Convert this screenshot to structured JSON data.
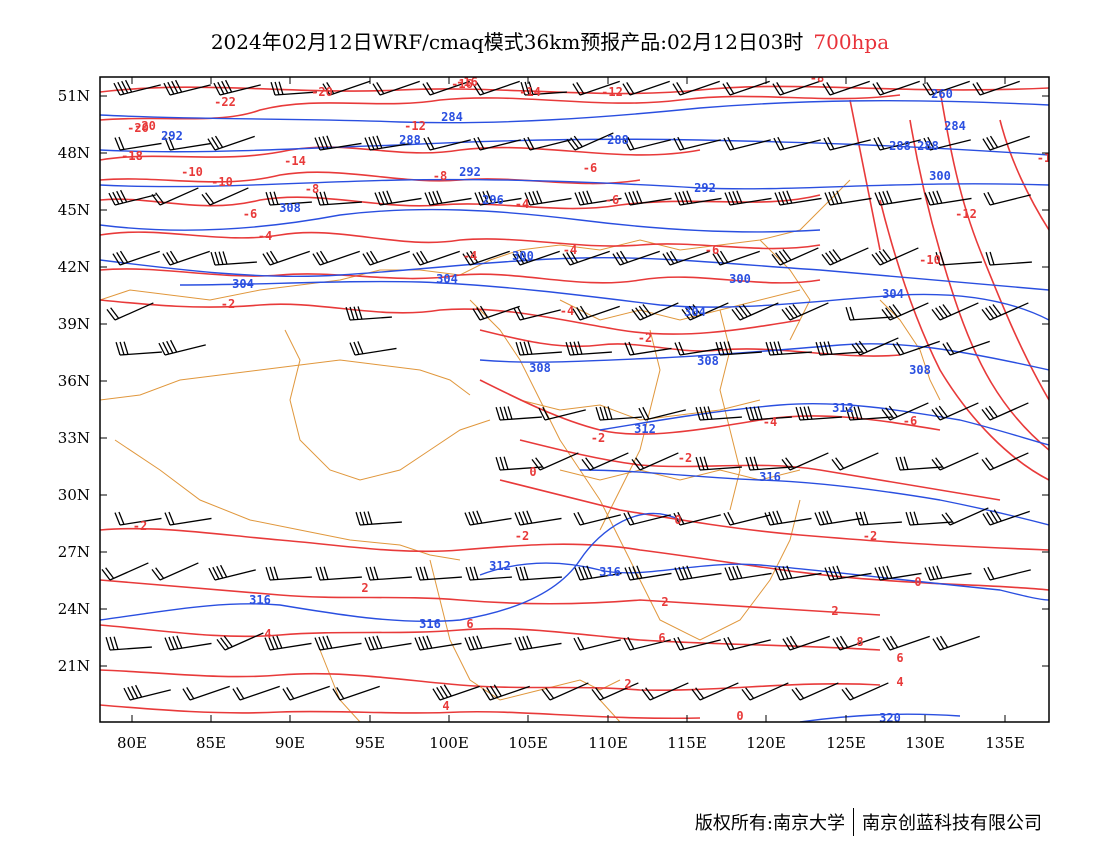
{
  "title": {
    "main": "2024年02月12日WRF/cmaq模式36km预报产品:02月12日03时",
    "level": "700hpa",
    "level_color": "#e8323a"
  },
  "map": {
    "lat_labels": [
      "51N",
      "48N",
      "45N",
      "42N",
      "39N",
      "36N",
      "33N",
      "30N",
      "27N",
      "24N",
      "21N"
    ],
    "lon_labels": [
      "80E",
      "85E",
      "90E",
      "95E",
      "100E",
      "105E",
      "110E",
      "115E",
      "120E",
      "125E",
      "130E",
      "135E"
    ],
    "temperature_color": "#e83a3a",
    "height_color": "#2a4fe0",
    "border_color": "#e0973c",
    "temperature_labels": [
      "-16",
      "-20",
      "-22",
      "-20",
      "-18",
      "-16",
      "-14",
      "-12",
      "-8",
      "-20",
      "-12",
      "-10",
      "-8",
      "-18",
      "-10",
      "-14",
      "-8",
      "-6",
      "-6",
      "-4",
      "-4",
      "-6",
      "-4",
      "-4",
      "-12",
      "-2",
      "-4",
      "-6",
      "-10",
      "-2",
      "-4",
      "-2",
      "-2",
      "0",
      "0",
      "-2",
      "-2",
      "2",
      "-2",
      "0",
      "2",
      "2",
      "4",
      "6",
      "8",
      "4",
      "6",
      "2",
      "4",
      "6",
      "0",
      "-6",
      "-1"
    ],
    "height_labels": [
      "292",
      "284",
      "288",
      "260",
      "284",
      "288",
      "296",
      "300",
      "292",
      "288",
      "292",
      "288",
      "304",
      "300",
      "308",
      "304",
      "304",
      "300",
      "308",
      "304",
      "308",
      "316",
      "312",
      "312",
      "312",
      "316",
      "316",
      "316",
      "308",
      "320"
    ]
  },
  "footer": {
    "left": "版权所有:南京大学",
    "right": "南京创蓝科技有限公司"
  }
}
